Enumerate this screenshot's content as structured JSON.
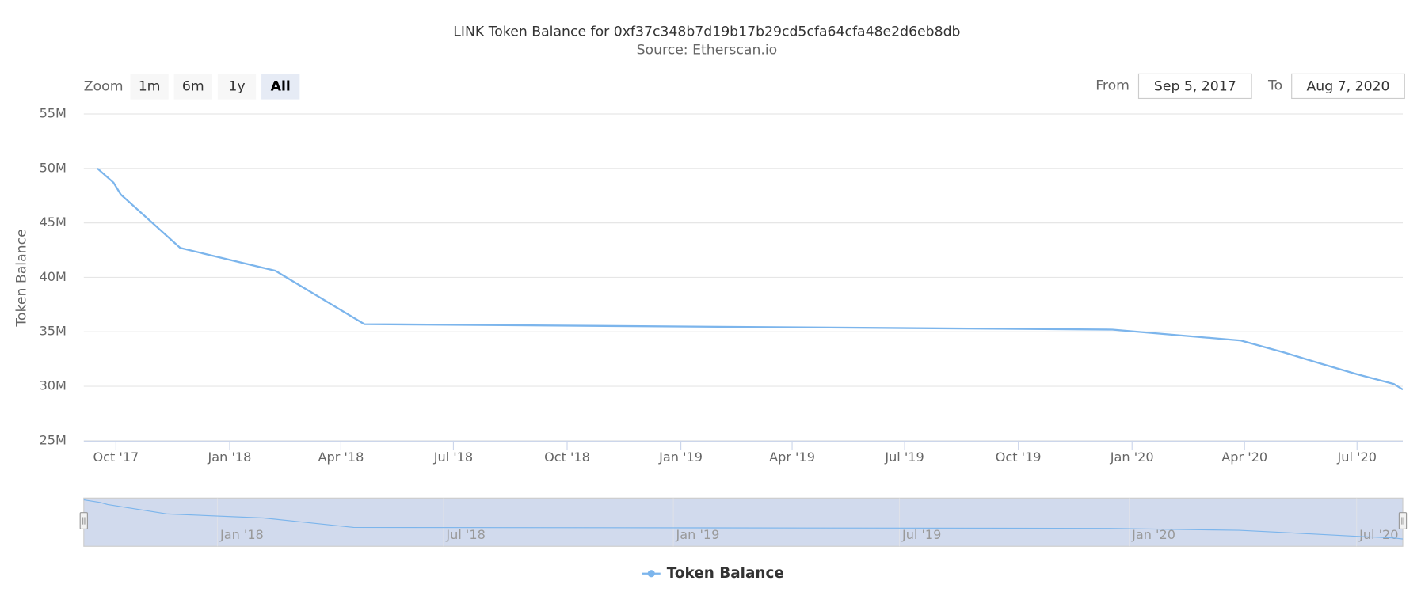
{
  "chart_data": {
    "type": "line",
    "title": "LINK Token Balance for 0xf37c348b7d19b17b29cd5cfa64cfa48e2d6eb8db",
    "subtitle": "Source: Etherscan.io",
    "y_label": "Token Balance",
    "zoom_label": "Zoom",
    "zoom_buttons": [
      "1m",
      "6m",
      "1y",
      "All"
    ],
    "zoom_selected": "All",
    "from_label": "From",
    "to_label": "To",
    "range_from": "Sep 5, 2017",
    "range_to": "Aug 7, 2020",
    "x": [
      "2017-09-16",
      "2017-09-29",
      "2017-10-05",
      "2017-11-22",
      "2018-02-07",
      "2018-04-20",
      "2019-12-16",
      "2020-03-29",
      "2020-05-03",
      "2020-06-01",
      "2020-07-01",
      "2020-07-31",
      "2020-08-07"
    ],
    "series": [
      {
        "name": "Token Balance",
        "color": "#7cb5ec",
        "values": [
          50000000,
          48700000,
          47600000,
          42700000,
          40600000,
          35700000,
          35200000,
          34200000,
          33100000,
          32100000,
          31100000,
          30200000,
          29700000
        ]
      }
    ],
    "xlim": [
      "2017-09-05",
      "2020-08-07"
    ],
    "xticks": [
      {
        "value": "2017-10-01",
        "label": "Oct '17"
      },
      {
        "value": "2018-01-01",
        "label": "Jan '18"
      },
      {
        "value": "2018-04-01",
        "label": "Apr '18"
      },
      {
        "value": "2018-07-01",
        "label": "Jul '18"
      },
      {
        "value": "2018-10-01",
        "label": "Oct '18"
      },
      {
        "value": "2019-01-01",
        "label": "Jan '19"
      },
      {
        "value": "2019-04-01",
        "label": "Apr '19"
      },
      {
        "value": "2019-07-01",
        "label": "Jul '19"
      },
      {
        "value": "2019-10-01",
        "label": "Oct '19"
      },
      {
        "value": "2020-01-01",
        "label": "Jan '20"
      },
      {
        "value": "2020-04-01",
        "label": "Apr '20"
      },
      {
        "value": "2020-07-01",
        "label": "Jul '20"
      }
    ],
    "navigator_xticks": [
      {
        "value": "2018-01-01",
        "label": "Jan '18"
      },
      {
        "value": "2018-07-01",
        "label": "Jul '18"
      },
      {
        "value": "2019-01-01",
        "label": "Jan '19"
      },
      {
        "value": "2019-07-01",
        "label": "Jul '19"
      },
      {
        "value": "2020-01-01",
        "label": "Jan '20"
      },
      {
        "value": "2020-07-01",
        "label": "Jul '20"
      }
    ],
    "ylim": [
      25000000,
      55000000
    ],
    "yticks": [
      {
        "value": 25000000,
        "label": "25M"
      },
      {
        "value": 30000000,
        "label": "30M"
      },
      {
        "value": 35000000,
        "label": "35M"
      },
      {
        "value": 40000000,
        "label": "40M"
      },
      {
        "value": 45000000,
        "label": "45M"
      },
      {
        "value": 50000000,
        "label": "50M"
      },
      {
        "value": 55000000,
        "label": "55M"
      }
    ],
    "grid": true,
    "legend": "bottom"
  }
}
